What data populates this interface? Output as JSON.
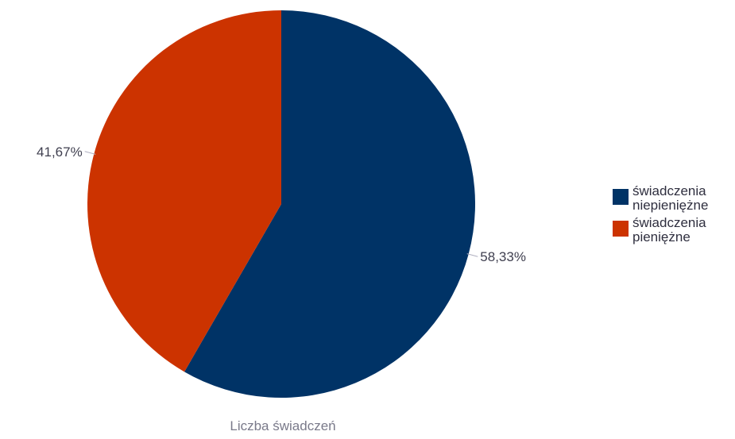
{
  "chart_data": {
    "type": "pie",
    "categories": [
      "świadczenia niepieniężne",
      "świadczenia pieniężne"
    ],
    "values": [
      58.33,
      41.67
    ],
    "data_labels": [
      "58,33%",
      "41,67%"
    ],
    "xlabel": "Liczba świadczeń",
    "legend_position": "right",
    "colors": [
      "#003366",
      "#cc3300"
    ]
  },
  "legend": {
    "items": [
      {
        "label": "świadczenia niepieniężne",
        "color": "#003366"
      },
      {
        "label": "świadczenia pieniężne",
        "color": "#cc3300"
      }
    ]
  }
}
